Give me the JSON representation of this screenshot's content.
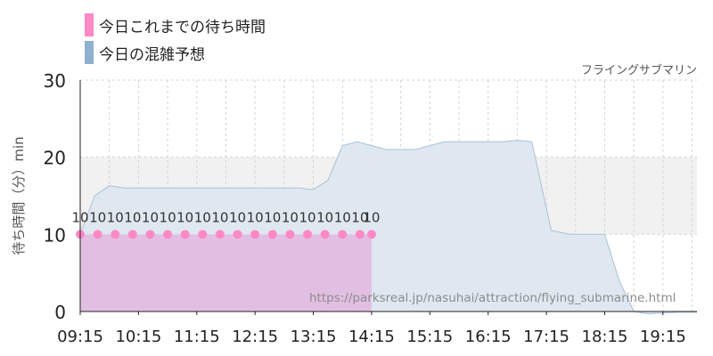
{
  "legend": [
    {
      "label": "今日これまでの待ち時間",
      "color": "#ff88c6"
    },
    {
      "label": "今日の混雑予想",
      "color": "#8fb0cf"
    }
  ],
  "attraction_name": "フライングサブマリン",
  "source_url": "https://parksreal.jp/nasuhai/attraction/flying_submarine.html",
  "chart_data": {
    "type": "area",
    "ylabel": "待ち時間（分）min",
    "ylim": [
      0,
      30
    ],
    "yticks": [
      0,
      10,
      20,
      30
    ],
    "xticks": [
      "09:15",
      "10:15",
      "11:15",
      "12:15",
      "13:15",
      "14:15",
      "15:15",
      "16:15",
      "17:15",
      "18:15",
      "19:15"
    ],
    "shaded_band": [
      10,
      20
    ],
    "series": [
      {
        "name": "今日これまでの待ち時間",
        "type": "area_points",
        "color": "#ff88c6",
        "fill": "#e2bde0",
        "x": [
          "09:15",
          "09:33",
          "09:51",
          "10:09",
          "10:27",
          "10:45",
          "11:03",
          "11:21",
          "11:39",
          "11:57",
          "12:15",
          "12:33",
          "12:51",
          "13:09",
          "13:27",
          "13:45",
          "14:03",
          "14:15"
        ],
        "values": [
          10,
          10,
          10,
          10,
          10,
          10,
          10,
          10,
          10,
          10,
          10,
          10,
          10,
          10,
          10,
          10,
          10,
          10
        ],
        "data_labels": [
          "10",
          "10",
          "10",
          "10",
          "10",
          "10",
          "10",
          "10",
          "10",
          "10",
          "10",
          "10",
          "10",
          "10",
          "10",
          "10",
          "10",
          "10"
        ]
      },
      {
        "name": "今日の混雑予想",
        "type": "area",
        "color": "#a9c1d8",
        "fill": "#dfe8f0",
        "x": [
          "09:15",
          "09:30",
          "09:45",
          "10:00",
          "10:30",
          "11:00",
          "11:30",
          "12:00",
          "12:30",
          "13:00",
          "13:15",
          "13:30",
          "13:45",
          "14:00",
          "14:30",
          "15:00",
          "15:30",
          "16:00",
          "16:20",
          "16:30",
          "16:45",
          "17:00",
          "17:20",
          "17:40",
          "18:00",
          "18:15",
          "18:30",
          "18:45",
          "19:00",
          "19:30",
          "19:50"
        ],
        "values": [
          10,
          15,
          16.3,
          16,
          16,
          16,
          16,
          16,
          16,
          16,
          15.8,
          17,
          21.5,
          22,
          21,
          21,
          22,
          22,
          22,
          22,
          22.2,
          22,
          10.5,
          10,
          10,
          10,
          4,
          0,
          -0.3,
          -0.1,
          -0.1
        ]
      }
    ],
    "grid": true
  }
}
